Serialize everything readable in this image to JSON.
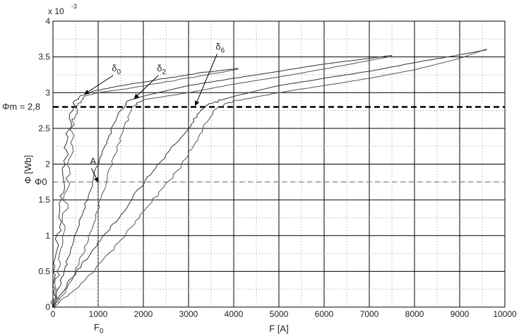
{
  "chart_data": {
    "type": "line",
    "xlabel": "F [A]",
    "ylabel": "Φ [Wb]",
    "y_multiplier": "x 10",
    "y_multiplier_exp": "-3",
    "xlim": [
      0,
      10000
    ],
    "ylim": [
      0,
      4
    ],
    "x_ticks": [
      0,
      1000,
      2000,
      3000,
      4000,
      5000,
      6000,
      7000,
      8000,
      9000,
      10000
    ],
    "y_ticks": [
      0,
      0.5,
      1,
      1.5,
      2,
      2.5,
      3,
      3.5,
      4
    ],
    "x_tick_labels": [
      "0",
      "1000",
      "2000",
      "3000",
      "4000",
      "5000",
      "6000",
      "7000",
      "8000",
      "9000",
      "10000"
    ],
    "y_tick_labels": [
      "0",
      "0.5",
      "1",
      "1.5",
      "2",
      "2.5",
      "3",
      "3.5",
      "4"
    ],
    "grid": true,
    "reference_lines": [
      {
        "label": "Φm = 2,8",
        "y": 2.8,
        "style": "bold-dashed"
      },
      {
        "label": "Φ0",
        "y": 1.75,
        "style": "dashed"
      }
    ],
    "x_marker_label": "F0",
    "x_marker_value": 1000,
    "series": [
      {
        "name": "δ0",
        "label_at": [
          1300,
          3.3
        ],
        "arrow_to": [
          700,
          2.98
        ],
        "upper": [
          [
            0,
            0
          ],
          [
            60,
            0.5
          ],
          [
            110,
            1.0
          ],
          [
            180,
            1.5
          ],
          [
            260,
            2.0
          ],
          [
            350,
            2.5
          ],
          [
            450,
            2.8
          ],
          [
            600,
            2.95
          ],
          [
            900,
            3.02
          ],
          [
            1500,
            3.1
          ],
          [
            2500,
            3.2
          ],
          [
            3300,
            3.28
          ],
          [
            4100,
            3.34
          ]
        ],
        "lower": [
          [
            0,
            0
          ],
          [
            140,
            0.5
          ],
          [
            220,
            1.0
          ],
          [
            290,
            1.5
          ],
          [
            360,
            2.0
          ],
          [
            430,
            2.5
          ],
          [
            520,
            2.8
          ],
          [
            700,
            2.95
          ],
          [
            1000,
            3.0
          ],
          [
            1600,
            3.05
          ],
          [
            2500,
            3.15
          ],
          [
            3300,
            3.24
          ],
          [
            4100,
            3.33
          ]
        ]
      },
      {
        "name": "δ2",
        "label_at": [
          2300,
          3.3
        ],
        "arrow_to": [
          1800,
          2.92
        ],
        "upper": [
          [
            0,
            0
          ],
          [
            150,
            0.3
          ],
          [
            300,
            0.6
          ],
          [
            450,
            0.9
          ],
          [
            650,
            1.3
          ],
          [
            850,
            1.7
          ],
          [
            1050,
            2.1
          ],
          [
            1250,
            2.4
          ],
          [
            1450,
            2.7
          ],
          [
            1650,
            2.88
          ],
          [
            2000,
            2.95
          ],
          [
            3000,
            3.1
          ],
          [
            4000,
            3.2
          ],
          [
            5000,
            3.3
          ],
          [
            6000,
            3.4
          ],
          [
            7000,
            3.48
          ],
          [
            7500,
            3.52
          ]
        ],
        "lower": [
          [
            0,
            0
          ],
          [
            250,
            0.2
          ],
          [
            500,
            0.5
          ],
          [
            750,
            0.9
          ],
          [
            950,
            1.3
          ],
          [
            1150,
            1.7
          ],
          [
            1350,
            2.1
          ],
          [
            1550,
            2.45
          ],
          [
            1750,
            2.8
          ],
          [
            2000,
            2.9
          ],
          [
            3000,
            3.0
          ],
          [
            4000,
            3.12
          ],
          [
            5000,
            3.22
          ],
          [
            6000,
            3.33
          ],
          [
            7000,
            3.45
          ],
          [
            7500,
            3.51
          ]
        ]
      },
      {
        "name": "δ6",
        "label_at": [
          3600,
          3.6
        ],
        "arrow_to": [
          3150,
          2.82
        ],
        "upper": [
          [
            0,
            0
          ],
          [
            300,
            0.3
          ],
          [
            650,
            0.6
          ],
          [
            1000,
            0.9
          ],
          [
            1400,
            1.2
          ],
          [
            1800,
            1.55
          ],
          [
            2200,
            1.9
          ],
          [
            2600,
            2.2
          ],
          [
            3000,
            2.5
          ],
          [
            3250,
            2.75
          ],
          [
            3500,
            2.85
          ],
          [
            4000,
            2.95
          ],
          [
            5000,
            3.1
          ],
          [
            6000,
            3.2
          ],
          [
            7000,
            3.3
          ],
          [
            8000,
            3.42
          ],
          [
            9000,
            3.53
          ],
          [
            9600,
            3.6
          ]
        ],
        "lower": [
          [
            0,
            0
          ],
          [
            500,
            0.25
          ],
          [
            950,
            0.55
          ],
          [
            1450,
            0.9
          ],
          [
            1900,
            1.25
          ],
          [
            2350,
            1.6
          ],
          [
            2800,
            1.95
          ],
          [
            3150,
            2.3
          ],
          [
            3400,
            2.6
          ],
          [
            3650,
            2.8
          ],
          [
            4000,
            2.88
          ],
          [
            5000,
            3.0
          ],
          [
            6000,
            3.1
          ],
          [
            7000,
            3.2
          ],
          [
            8000,
            3.32
          ],
          [
            9000,
            3.48
          ],
          [
            9600,
            3.61
          ]
        ]
      }
    ],
    "annotations": [
      {
        "text": "A",
        "at": [
          820,
          2.0
        ],
        "arrow_to": [
          1000,
          1.75
        ]
      }
    ]
  }
}
